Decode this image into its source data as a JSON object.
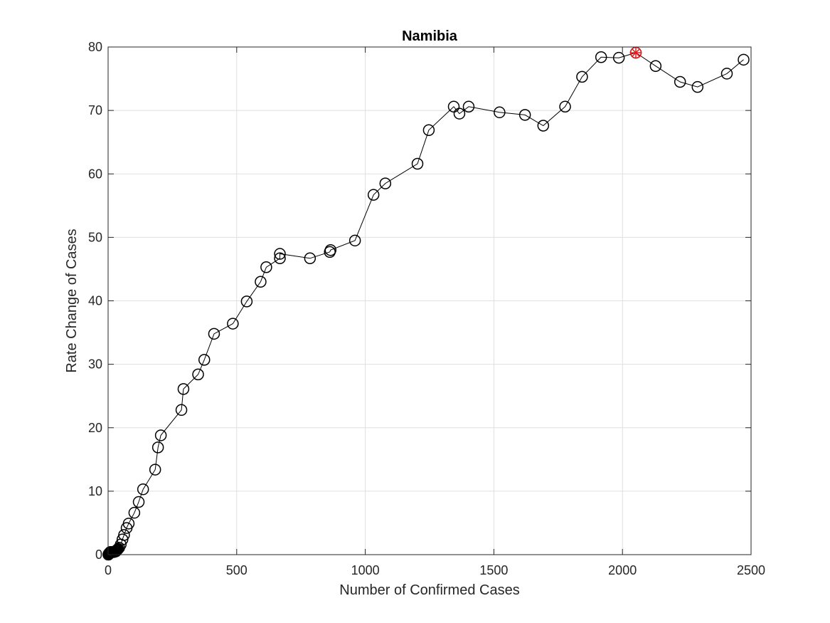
{
  "chart_data": {
    "type": "scatter",
    "title": "Namibia",
    "xlabel": "Number of Confirmed Cases",
    "ylabel": "Rate Change of Cases",
    "xlim": [
      0,
      2500
    ],
    "ylim": [
      0,
      80
    ],
    "xticks": [
      0,
      500,
      1000,
      1500,
      2000,
      2500
    ],
    "yticks": [
      0,
      10,
      20,
      30,
      40,
      50,
      60,
      70,
      80
    ],
    "grid": true,
    "marker": "open-circle",
    "line_color": "#000000",
    "highlight_color": "#e8191c",
    "series": [
      {
        "x": [
          1,
          2,
          3,
          4,
          5,
          6,
          7,
          8,
          8,
          10,
          11,
          11,
          12,
          14,
          15,
          16,
          16,
          16,
          16,
          16,
          19,
          20,
          22,
          25,
          28,
          30,
          31,
          32,
          34,
          36,
          39,
          43,
          49,
          56,
          62,
          72,
          80,
          102,
          119,
          136,
          183,
          194,
          205,
          285,
          293,
          350,
          374,
          412,
          485,
          539,
          593,
          615,
          668,
          668,
          785,
          862,
          865,
          960,
          1032,
          1078,
          1203,
          1247,
          1344,
          1366,
          1402,
          1522,
          1621,
          1692,
          1777,
          1843,
          1917,
          1986,
          2052,
          2129,
          2224,
          2292,
          2406,
          2471
        ],
        "y": [
          0.0,
          0.1,
          0.1,
          0.2,
          0.2,
          0.3,
          0.3,
          0.3,
          0.4,
          0.4,
          0.4,
          0.4,
          0.4,
          0.4,
          0.4,
          0.4,
          0.4,
          0.4,
          0.4,
          0.4,
          0.4,
          0.4,
          0.4,
          0.5,
          0.5,
          0.5,
          0.6,
          0.6,
          0.7,
          0.8,
          0.9,
          1.1,
          1.6,
          2.4,
          3.1,
          4.2,
          4.9,
          6.6,
          8.3,
          10.3,
          13.4,
          16.9,
          18.8,
          22.8,
          26.1,
          28.4,
          30.7,
          34.8,
          36.4,
          39.9,
          43.0,
          45.3,
          46.7,
          47.4,
          46.7,
          47.7,
          48.0,
          49.5,
          56.7,
          58.5,
          61.6,
          66.9,
          70.6,
          69.5,
          70.6,
          69.7,
          69.3,
          67.6,
          70.6,
          75.3,
          78.4,
          78.3,
          79.1,
          77.0,
          74.5,
          73.7,
          75.8,
          78.0
        ]
      }
    ],
    "highlight": {
      "x": 2052,
      "y": 79.1
    }
  }
}
